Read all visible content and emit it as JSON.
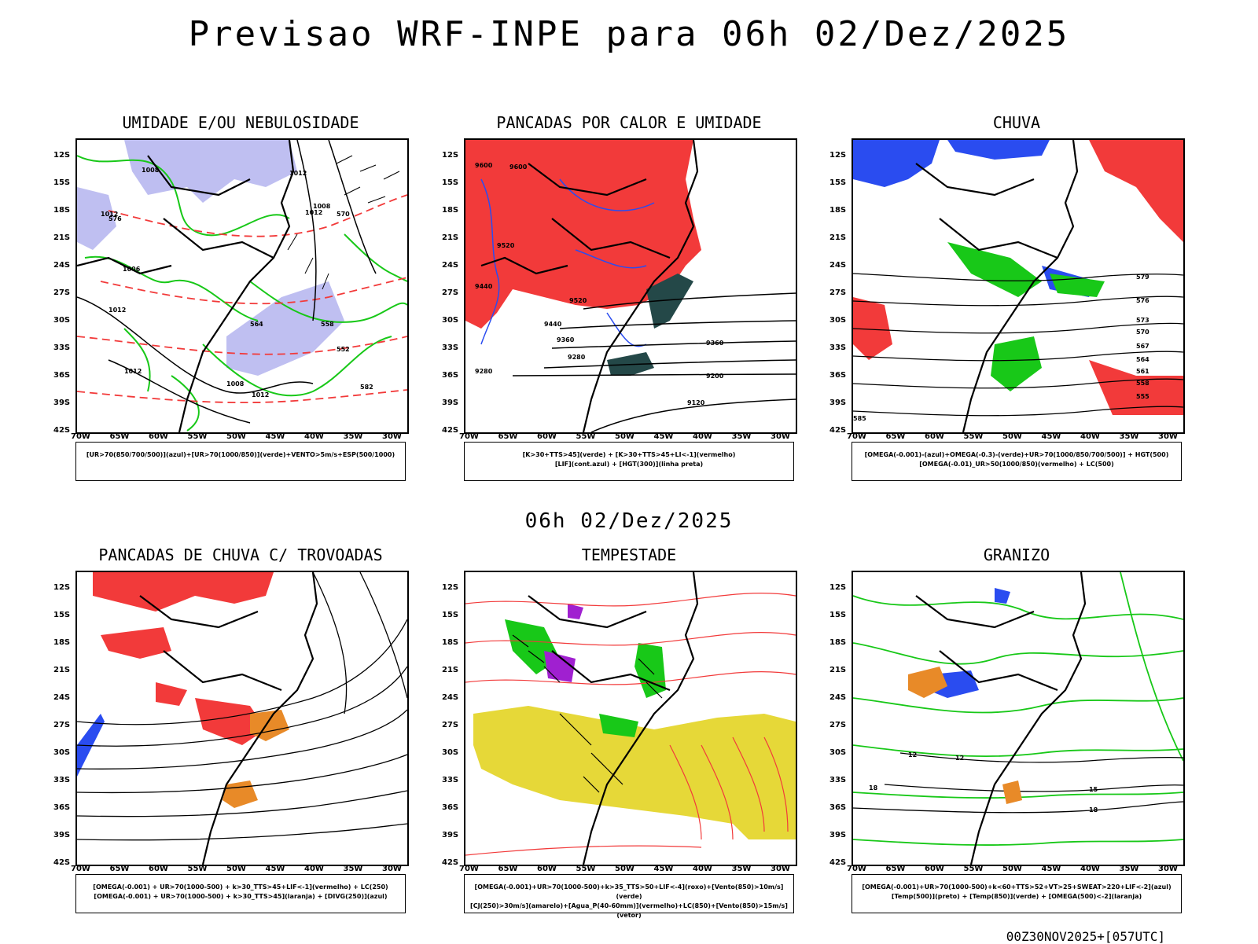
{
  "title": "Previsao WRF-INPE  para 06h 02/Dez/2025",
  "mid_time": "06h 02/Dez/2025",
  "footer": "00Z30NOV2025+[057UTC]",
  "lat_labels": [
    "12S",
    "15S",
    "18S",
    "21S",
    "24S",
    "27S",
    "30S",
    "33S",
    "36S",
    "39S",
    "42S"
  ],
  "lon_labels": [
    "70W",
    "65W",
    "60W",
    "55W",
    "50W",
    "45W",
    "40W",
    "35W",
    "30W"
  ],
  "panels": {
    "umidade": {
      "title": "UMIDADE E/OU NEBULOSIDADE",
      "legend1": "[UR>70(850/700/500)](azul)+[UR>70(1000/850)](verde)+VENTO>5m/s+ESP(500/1000)",
      "legend2": ""
    },
    "pancadas_calor": {
      "title": "PANCADAS POR CALOR E UMIDADE",
      "legend1": "[K>30+TTS>45](verde) + [K>30+TTS>45+LI<-1](vermelho)",
      "legend2": "[LIF](cont.azul) + [HGT(300)](linha preta)"
    },
    "chuva": {
      "title": "CHUVA",
      "legend1": "[OMEGA(-0.001)-(azul)+OMEGA(-0.3)-(verde)+UR>70(1000/850/700/500)] + HGT(500)",
      "legend2": "[OMEGA(-0.01)_UR>50(1000/850)(vermelho) + LC(500)"
    },
    "trovoadas": {
      "title": "PANCADAS DE CHUVA C/ TROVOADAS",
      "legend1": "[OMEGA(-0.001) + UR>70(1000-500) + k>30_TTS>45+LIF<-1](vermelho) + LC(250)",
      "legend2": "[OMEGA(-0.001) + UR>70(1000-500) + k>30_TTS>45](laranja) + [DIVG(250)](azul)"
    },
    "tempestade": {
      "title": "TEMPESTADE",
      "legend1": "[OMEGA(-0.001)+UR>70(1000-500)+k>35_TTS>50+LIF<-4](roxo)+[Vento(850)>10m/s](verde)",
      "legend2": "[CJ(250)>30m/s](amarelo)+[Agua_P(40-60mm)](vermelho)+LC(850)+[Vento(850)>15m/s](vetor)"
    },
    "granizo": {
      "title": "GRANIZO",
      "legend1": "[OMEGA(-0.001)+UR>70(1000-500)+k<60+TTS>52+VT>25+SWEAT>220+LIF<-2](azul)",
      "legend2": "[Temp(500)](preto) + [Temp(850)](verde) + [OMEGA(500)<-2](laranja)"
    }
  },
  "contour_labels": {
    "umidade": [
      "1008",
      "1012",
      "1012",
      "1008",
      "1006",
      "1012",
      "1012",
      "1012",
      "1008",
      "1012",
      "570",
      "576",
      "564",
      "558",
      "552",
      "582"
    ],
    "pancadas_calor": [
      "9600",
      "9600",
      "9520",
      "9440",
      "9520",
      "9440",
      "9360",
      "9280",
      "9280",
      "9200",
      "9120",
      "9360"
    ],
    "chuva": [
      "579",
      "576",
      "573",
      "570",
      "567",
      "564",
      "561",
      "558",
      "555",
      "585"
    ],
    "granizo": [
      "12",
      "12",
      "15",
      "18",
      "18"
    ]
  },
  "colors": {
    "blue_shade": "#b8b8f0",
    "blue": "#2a4cf0",
    "green": "#18c818",
    "red": "#f23a3a",
    "dark_teal": "#244848",
    "orange": "#e88a28",
    "yellow": "#e6d838",
    "purple": "#a020d0"
  }
}
